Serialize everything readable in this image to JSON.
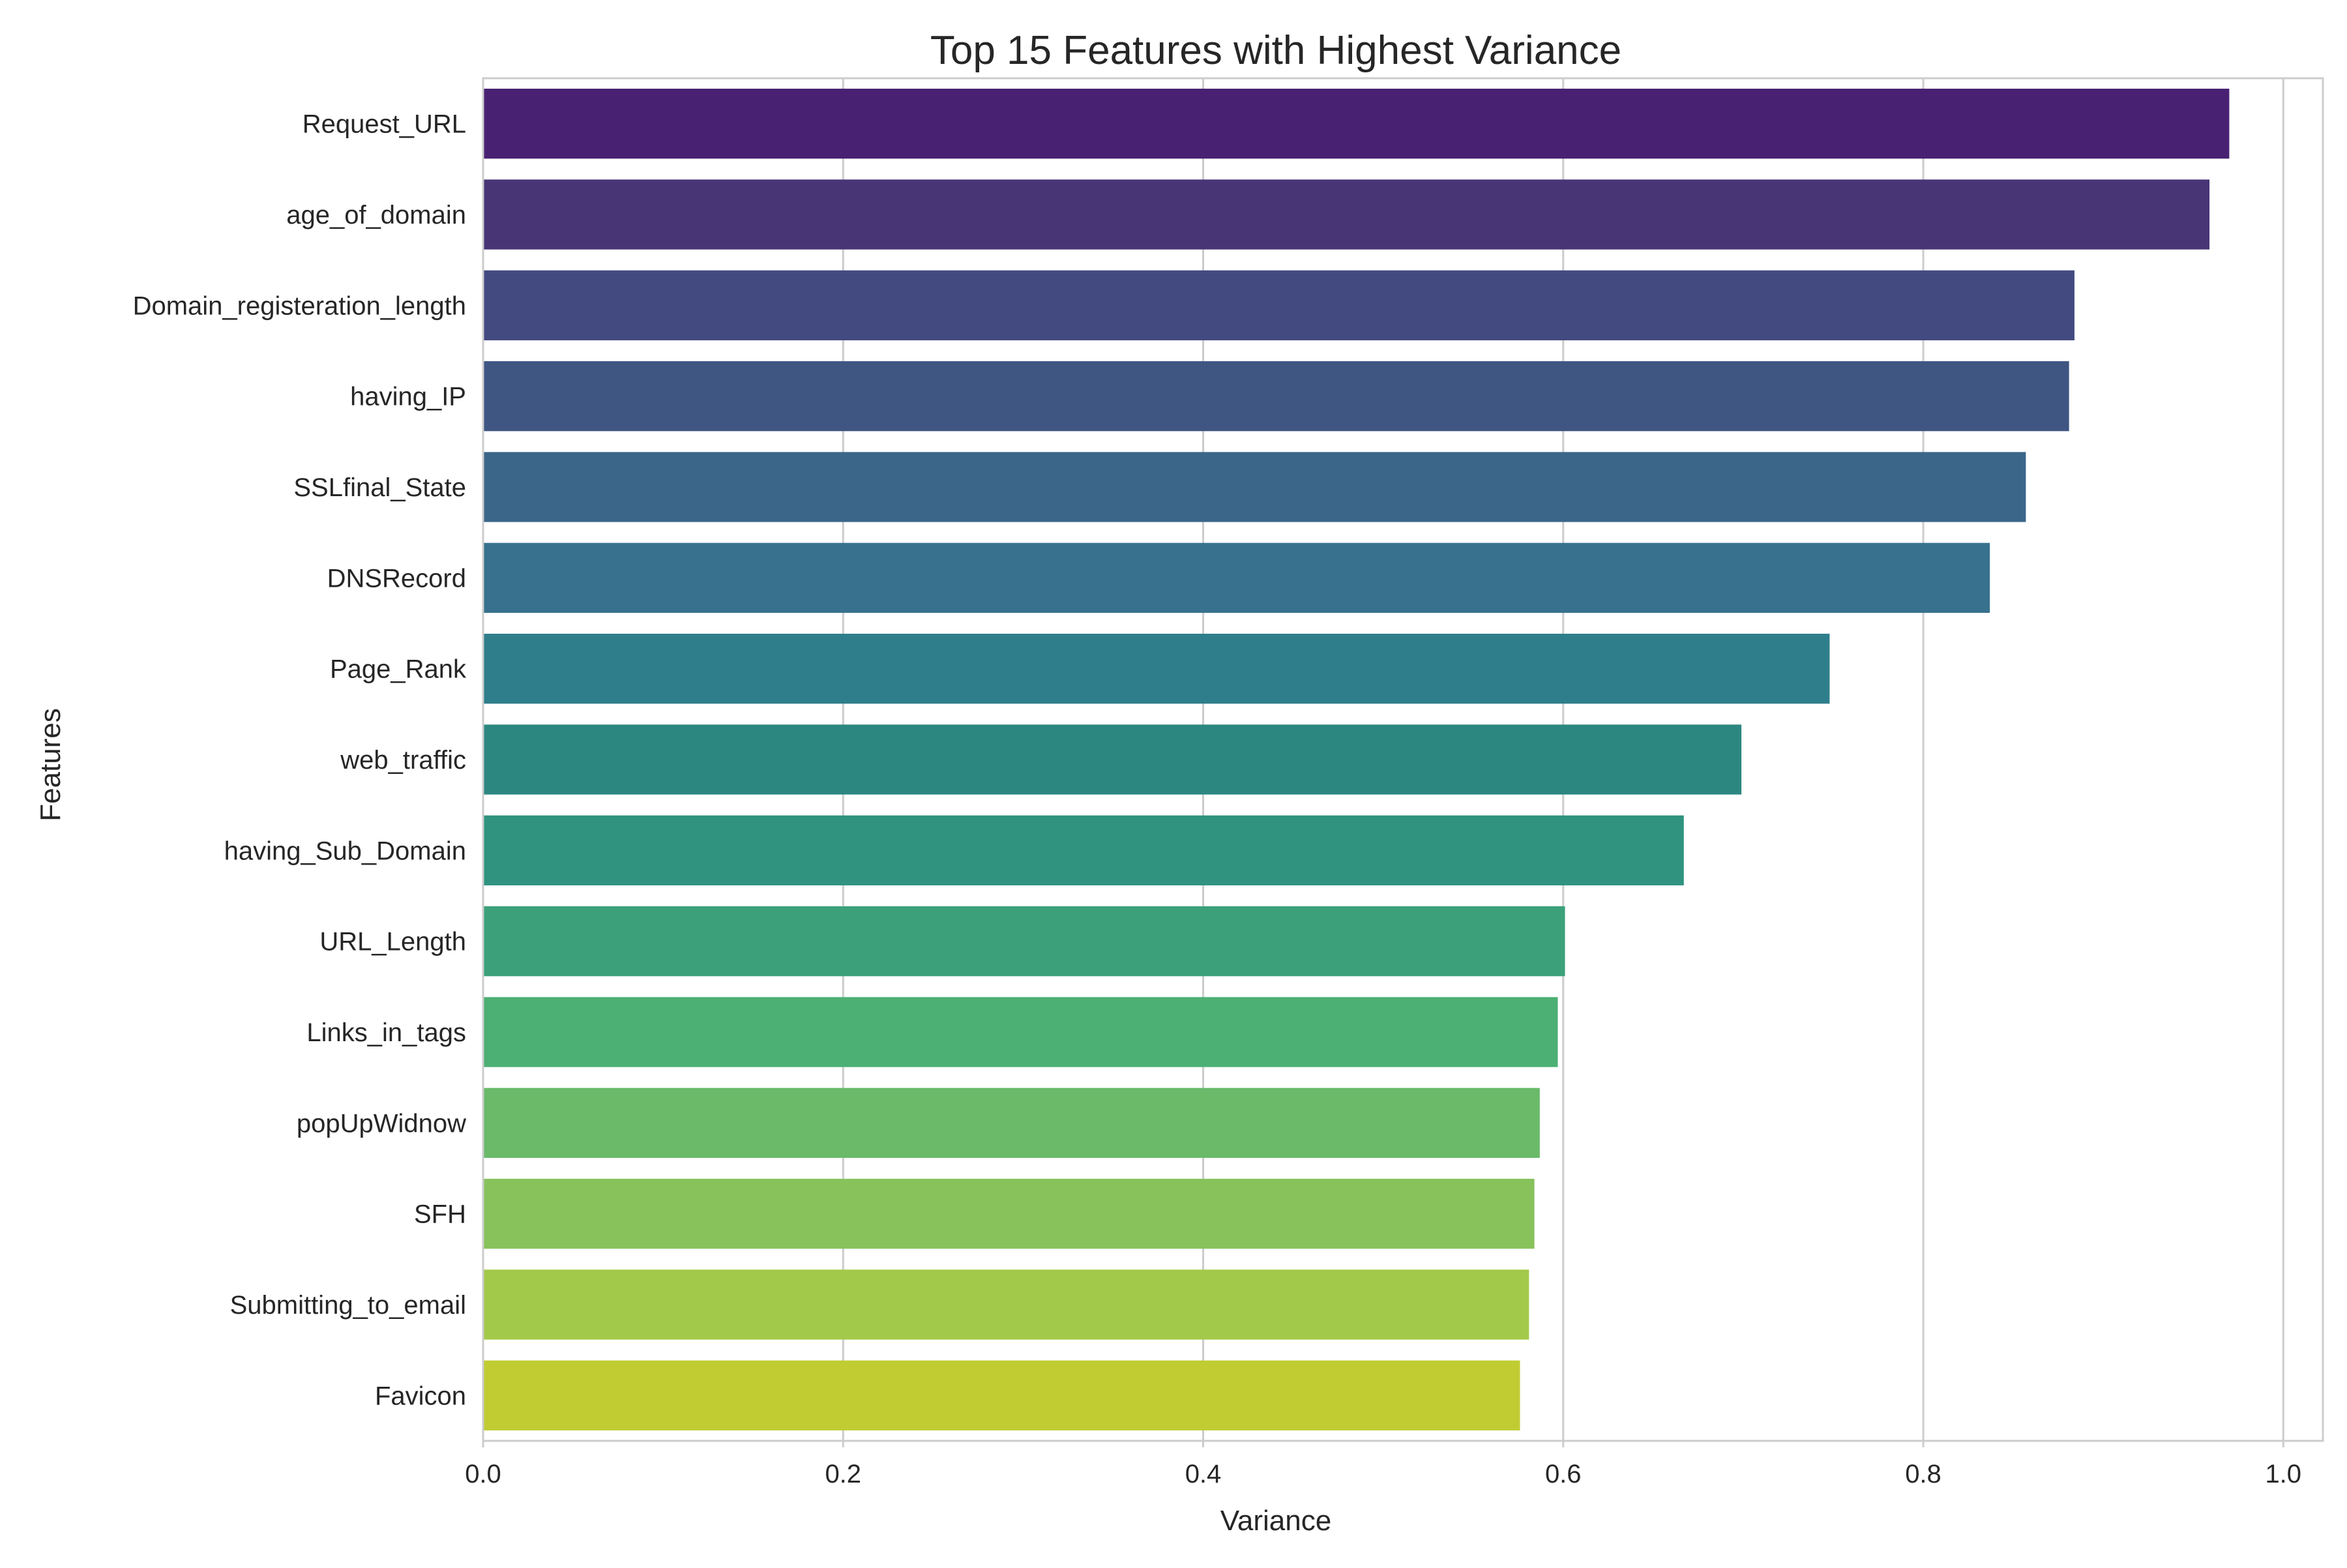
{
  "chart_data": {
    "type": "bar",
    "orientation": "horizontal",
    "title": "Top 15 Features with Highest Variance",
    "xlabel": "Variance",
    "ylabel": "Features",
    "xlim": [
      0.0,
      1.0
    ],
    "x_ticks": [
      "0.0",
      "0.2",
      "0.4",
      "0.6",
      "0.8",
      "1.0"
    ],
    "x_tick_values": [
      0.0,
      0.2,
      0.4,
      0.6,
      0.8,
      1.0
    ],
    "grid": true,
    "legend": "none",
    "categories": [
      "Request_URL",
      "age_of_domain",
      "Domain_registeration_length",
      "having_IP",
      "SSLfinal_State",
      "DNSRecord",
      "Page_Rank",
      "web_traffic",
      "having_Sub_Domain",
      "URL_Length",
      "Links_in_tags",
      "popUpWidnow",
      "SFH",
      "Submitting_to_email",
      "Favicon"
    ],
    "values": [
      0.97,
      0.959,
      0.884,
      0.881,
      0.857,
      0.837,
      0.748,
      0.699,
      0.667,
      0.601,
      0.597,
      0.587,
      0.584,
      0.581,
      0.576
    ],
    "colors": [
      "#482173",
      "#483576",
      "#434a80",
      "#3f5683",
      "#3b6689",
      "#37718d",
      "#2e7e8c",
      "#2c8780",
      "#2f9380",
      "#3ca17a",
      "#4caf73",
      "#6aba6a",
      "#87c25b",
      "#a3c94a",
      "#c1cc33"
    ]
  }
}
